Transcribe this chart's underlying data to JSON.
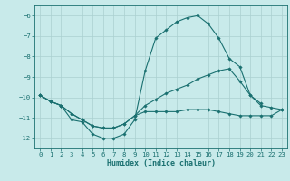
{
  "xlabel": "Humidex (Indice chaleur)",
  "bg_color": "#c8eaea",
  "line_color": "#1a7070",
  "grid_color": "#aad0d0",
  "xlim": [
    -0.5,
    23.5
  ],
  "ylim": [
    -12.5,
    -5.5
  ],
  "yticks": [
    -12,
    -11,
    -10,
    -9,
    -8,
    -7,
    -6
  ],
  "xticks": [
    0,
    1,
    2,
    3,
    4,
    5,
    6,
    7,
    8,
    9,
    10,
    11,
    12,
    13,
    14,
    15,
    16,
    17,
    18,
    19,
    20,
    21,
    22,
    23
  ],
  "line1_x": [
    0,
    1,
    2,
    3,
    4,
    5,
    6,
    7,
    8,
    9,
    10,
    11,
    12,
    13,
    14,
    15,
    16,
    17,
    18,
    19,
    20,
    21
  ],
  "line1_y": [
    -9.9,
    -10.2,
    -10.4,
    -11.1,
    -11.2,
    -11.8,
    -12.0,
    -12.0,
    -11.8,
    -11.1,
    -8.7,
    -7.1,
    -6.7,
    -6.3,
    -6.1,
    -6.0,
    -6.4,
    -7.1,
    -8.1,
    -8.5,
    -9.9,
    -10.3
  ],
  "line2_x": [
    0,
    1,
    2,
    3,
    4,
    5,
    6,
    7,
    8,
    9,
    10,
    11,
    12,
    13,
    14,
    15,
    16,
    17,
    18,
    19,
    20,
    21,
    22,
    23
  ],
  "line2_y": [
    -9.9,
    -10.2,
    -10.4,
    -10.8,
    -11.1,
    -11.4,
    -11.5,
    -11.5,
    -11.3,
    -10.9,
    -10.4,
    -10.1,
    -9.8,
    -9.6,
    -9.4,
    -9.1,
    -8.9,
    -8.7,
    -8.6,
    -9.2,
    -9.9,
    -10.4,
    -10.5,
    -10.6
  ],
  "line3_x": [
    0,
    1,
    2,
    3,
    4,
    5,
    6,
    7,
    8,
    9,
    10,
    11,
    12,
    13,
    14,
    15,
    16,
    17,
    18,
    19,
    20,
    21,
    22,
    23
  ],
  "line3_y": [
    -9.9,
    -10.2,
    -10.4,
    -10.8,
    -11.1,
    -11.4,
    -11.5,
    -11.5,
    -11.3,
    -10.9,
    -10.7,
    -10.7,
    -10.7,
    -10.7,
    -10.6,
    -10.6,
    -10.6,
    -10.7,
    -10.8,
    -10.9,
    -10.9,
    -10.9,
    -10.9,
    -10.6
  ],
  "xlabel_fontsize": 6.0,
  "tick_fontsize": 5.2,
  "line_width": 0.8,
  "marker_size": 1.8
}
